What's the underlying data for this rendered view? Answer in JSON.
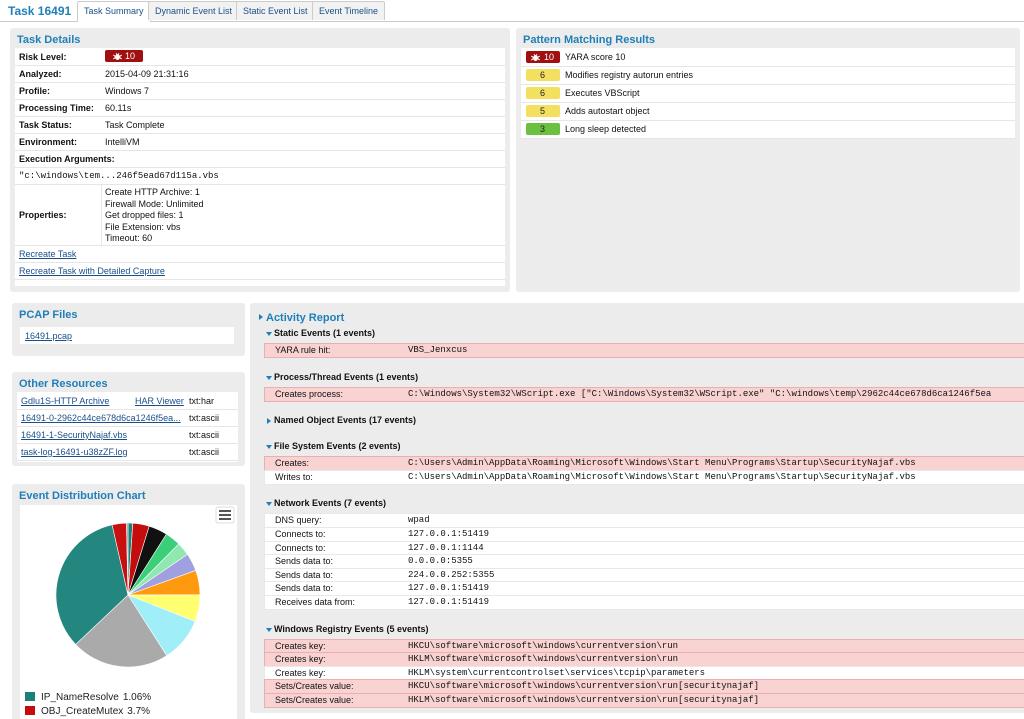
{
  "header": {
    "title": "Task 16491",
    "tabs": [
      "Task Summary",
      "Dynamic Event List",
      "Static Event List",
      "Event Timeline"
    ],
    "active_tab": 0
  },
  "task_details": {
    "title": "Task Details",
    "risk_level_label": "Risk Level:",
    "risk_level": 10,
    "rows": [
      [
        "Analyzed:",
        "2015-04-09 21:31:16"
      ],
      [
        "Profile:",
        "Windows 7"
      ],
      [
        "Processing Time:",
        "60.11s"
      ],
      [
        "Task Status:",
        "Task Complete"
      ],
      [
        "Environment:",
        "IntelliVM"
      ]
    ],
    "execution_label": "Execution Arguments:",
    "execution_args": "\"c:\\windows\\tem...246f5ead67d115a.vbs",
    "properties_label": "Properties:",
    "properties": [
      "Create HTTP Archive: 1",
      "Firewall Mode: Unlimited",
      "Get dropped files: 1",
      "File Extension: vbs",
      "Timeout: 60"
    ],
    "links": [
      "Recreate Task",
      "Recreate Task with Detailed Capture"
    ]
  },
  "pattern_matching": {
    "title": "Pattern Matching Results",
    "items": [
      {
        "score": 10,
        "text": "YARA score 10",
        "level": "high"
      },
      {
        "score": 6,
        "text": "Modifies registry autorun entries",
        "level": "medium"
      },
      {
        "score": 6,
        "text": "Executes VBScript",
        "level": "medium"
      },
      {
        "score": 5,
        "text": "Adds autostart object",
        "level": "medium"
      },
      {
        "score": 3,
        "text": "Long sleep detected",
        "level": "low"
      }
    ]
  },
  "pcap": {
    "title": "PCAP Files",
    "files": [
      "16491.pcap"
    ]
  },
  "resources": {
    "title": "Other Resources",
    "rows": [
      {
        "name": "Gdlu1S-HTTP Archive",
        "viewer": "HAR Viewer",
        "type": "txt:har"
      },
      {
        "name": "16491-0-2962c44ce678d6ca1246f5ea...",
        "type": "txt:ascii"
      },
      {
        "name": "16491-1-SecurityNajaf.vbs",
        "type": "txt:ascii"
      },
      {
        "name": "task-log-16491-u38zZF.log",
        "type": "txt:ascii"
      }
    ]
  },
  "event_chart": {
    "type": "pie",
    "title": "Event Distribution Chart",
    "values": [
      1.06,
      3.7,
      4.2,
      3.5,
      3,
      4,
      5.5,
      6,
      10,
      22,
      33.5,
      3.2,
      0.34
    ],
    "colors": [
      "#1b7f7a",
      "#c40e0e",
      "#111111",
      "#3ccf7a",
      "#8fe8b0",
      "#a0a0e0",
      "#ff9a10",
      "#ffff70",
      "#9feef8",
      "#aaaaaa",
      "#23867f",
      "#c81010",
      "#909090"
    ],
    "labels": [
      "IP_NameResolve",
      "OBJ_CreateMutex",
      null,
      null,
      null,
      null,
      null,
      null,
      null,
      null,
      null,
      null,
      null
    ],
    "value_labels": [
      "1.06%",
      "3.7%",
      null,
      null,
      null,
      null,
      null,
      null,
      null,
      null,
      null,
      null,
      null
    ]
  },
  "activity": {
    "title": "Activity Report",
    "sections": [
      {
        "title": "Static Events (1 events)",
        "expanded": true,
        "rows": [
          {
            "label": "YARA rule hit:",
            "value": "VBS_Jenxcus",
            "flagged": true
          }
        ]
      },
      {
        "title": "Process/Thread Events (1 events)",
        "expanded": true,
        "rows": [
          {
            "label": "Creates process:",
            "value": "C:\\Windows\\System32\\WScript.exe [\"C:\\Windows\\System32\\WScript.exe\" \"C:\\windows\\temp\\2962c44ce678d6ca1246f5ea",
            "flagged": true
          }
        ]
      },
      {
        "title": "Named Object Events (17 events)",
        "expanded": false,
        "rows": []
      },
      {
        "title": "File System Events (2 events)",
        "expanded": true,
        "rows": [
          {
            "label": "Creates:",
            "value": "C:\\Users\\Admin\\AppData\\Roaming\\Microsoft\\Windows\\Start Menu\\Programs\\Startup\\SecurityNajaf.vbs",
            "flagged": true
          },
          {
            "label": "Writes to:",
            "value": "C:\\Users\\Admin\\AppData\\Roaming\\Microsoft\\Windows\\Start Menu\\Programs\\Startup\\SecurityNajaf.vbs",
            "flagged": false
          }
        ]
      },
      {
        "title": "Network Events (7 events)",
        "expanded": true,
        "rows": [
          {
            "label": "DNS query:",
            "value": "wpad",
            "flagged": false
          },
          {
            "label": "Connects to:",
            "value": "127.0.0.1:51419",
            "flagged": false
          },
          {
            "label": "Connects to:",
            "value": "127.0.0.1:1144",
            "flagged": false
          },
          {
            "label": "Sends data to:",
            "value": "0.0.0.0:5355",
            "flagged": false
          },
          {
            "label": "Sends data to:",
            "value": "224.0.0.252:5355",
            "flagged": false
          },
          {
            "label": "Sends data to:",
            "value": "127.0.0.1:51419",
            "flagged": false
          },
          {
            "label": "Receives data from:",
            "value": "127.0.0.1:51419",
            "flagged": false
          }
        ]
      },
      {
        "title": "Windows Registry Events (5 events)",
        "expanded": true,
        "rows": [
          {
            "label": "Creates key:",
            "value": "HKCU\\software\\microsoft\\windows\\currentversion\\run",
            "flagged": true
          },
          {
            "label": "Creates key:",
            "value": "HKLM\\software\\microsoft\\windows\\currentversion\\run",
            "flagged": true
          },
          {
            "label": "Creates key:",
            "value": "HKLM\\system\\currentcontrolset\\services\\tcpip\\parameters",
            "flagged": false
          },
          {
            "label": "Sets/Creates value:",
            "value": "HKCU\\software\\microsoft\\windows\\currentversion\\run[securitynajaf]",
            "flagged": true
          },
          {
            "label": "Sets/Creates value:",
            "value": "HKLM\\software\\microsoft\\windows\\currentversion\\run[securitynajaf]",
            "flagged": true
          }
        ]
      }
    ]
  }
}
